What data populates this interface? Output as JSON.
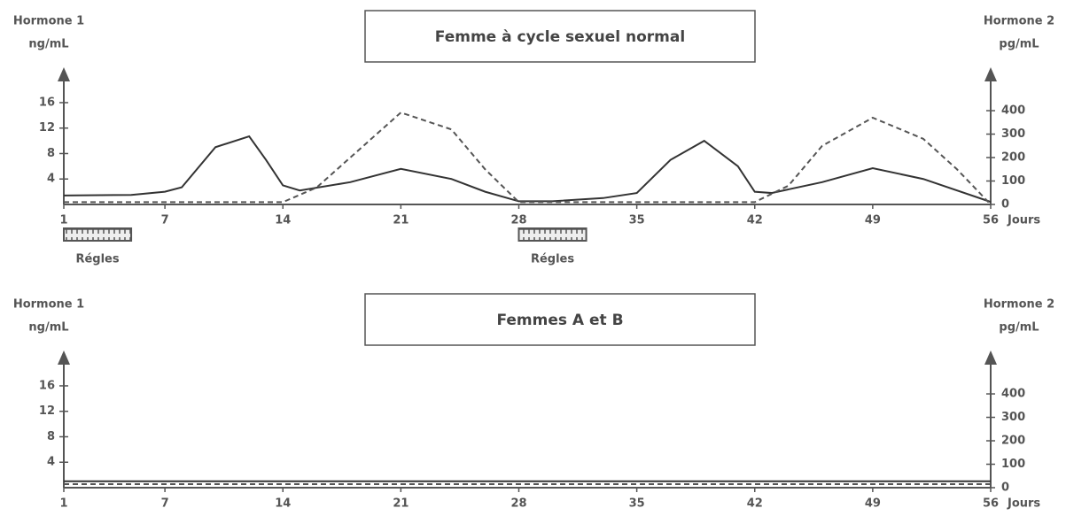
{
  "chart_data": [
    {
      "type": "line",
      "title": "Femme à cycle sexuel normal",
      "ylabel": "Hormone 1",
      "yunit": "ng/mL",
      "y2label": "Hormone 2",
      "y2unit": "pg/mL",
      "xlabel": "Jours",
      "xlim": [
        1,
        56
      ],
      "xticks": [
        1,
        7,
        14,
        21,
        28,
        35,
        42,
        49,
        56
      ],
      "ylim": [
        0,
        21
      ],
      "yticks": [
        4,
        8,
        12,
        16
      ],
      "y2lim": [
        0,
        570
      ],
      "y2ticks": [
        0,
        100,
        200,
        300,
        400
      ],
      "series": [
        {
          "color": "#333333",
          "style": "solid",
          "x": [
            1,
            5,
            7,
            8,
            10,
            12,
            13,
            14,
            15,
            18,
            21,
            24,
            26,
            28,
            30,
            33,
            35,
            37,
            39,
            41,
            42,
            43,
            46,
            49,
            52,
            56
          ],
          "values": [
            1.4,
            1.5,
            2,
            2.7,
            9,
            10.7,
            7,
            3,
            2.2,
            3.5,
            5.6,
            4,
            2,
            0.5,
            0.5,
            1,
            1.8,
            7,
            10,
            6,
            2,
            1.8,
            3.5,
            5.7,
            4,
            0.4
          ]
        },
        {
          "color": "#555555",
          "style": "dashed",
          "axis": "y2",
          "x": [
            1,
            14,
            16,
            18,
            21,
            24,
            26,
            28,
            35,
            42,
            44,
            46,
            49,
            52,
            54,
            56
          ],
          "values": [
            10,
            10,
            72,
            200,
            392,
            320,
            150,
            10,
            10,
            10,
            80,
            250,
            370,
            280,
            150,
            0
          ]
        }
      ],
      "periods": [
        {
          "label": "Régles",
          "start": 1,
          "end": 5
        },
        {
          "label": "Régles",
          "start": 28,
          "end": 32
        }
      ]
    },
    {
      "type": "line",
      "title": "Femmes A et B",
      "ylabel": "Hormone 1",
      "yunit": "ng/mL",
      "y2label": "Hormone 2",
      "y2unit": "pg/mL",
      "xlabel": "Jours",
      "xlim": [
        1,
        56
      ],
      "xticks": [
        1,
        7,
        14,
        21,
        28,
        35,
        42,
        49,
        56
      ],
      "ylim": [
        0,
        21
      ],
      "yticks": [
        4,
        8,
        12,
        16
      ],
      "y2lim": [
        0,
        570
      ],
      "y2ticks": [
        0,
        100,
        200,
        300,
        400
      ],
      "series": [
        {
          "color": "#333333",
          "style": "solid",
          "x": [
            1,
            56
          ],
          "values": [
            1,
            1
          ]
        },
        {
          "color": "#555555",
          "style": "dashed",
          "axis": "y2",
          "x": [
            1,
            56
          ],
          "values": [
            15,
            15
          ]
        }
      ],
      "periods": []
    }
  ]
}
